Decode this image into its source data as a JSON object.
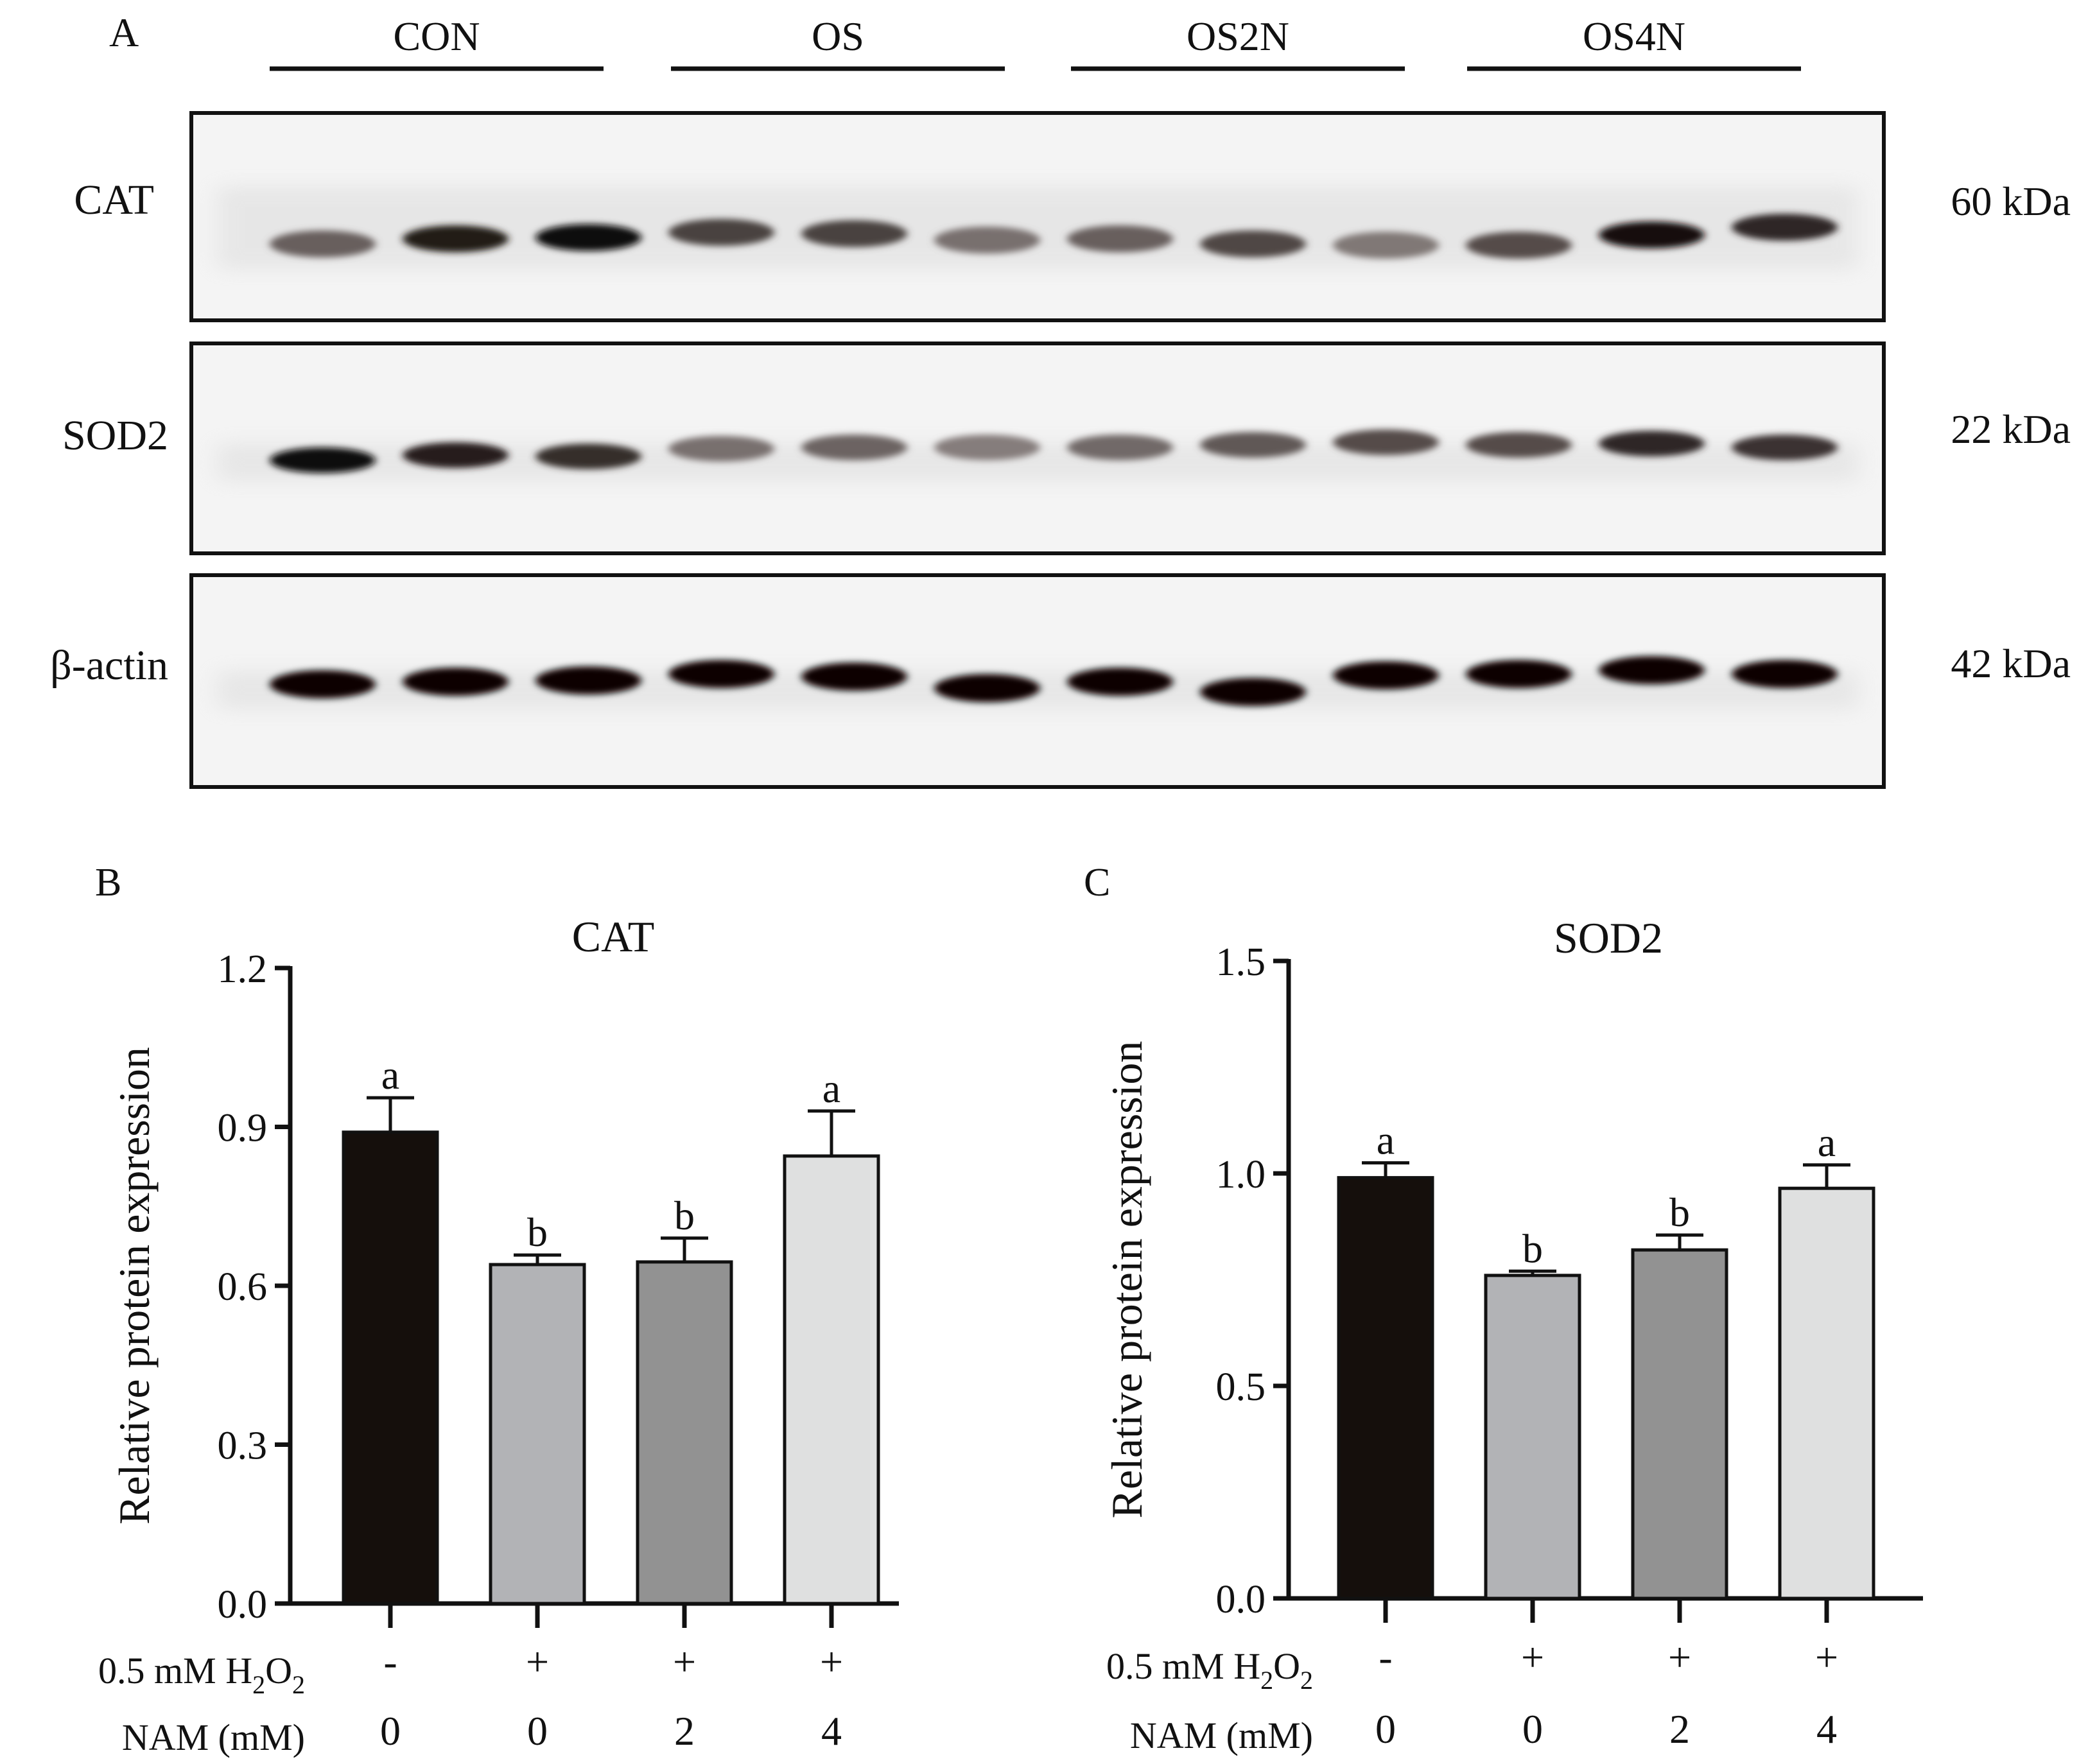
{
  "panel_a": {
    "panel_letter": "A",
    "groups": [
      "CON",
      "OS",
      "OS2N",
      "OS4N"
    ],
    "blots": [
      {
        "protein": "CAT",
        "mw": "60 kDa",
        "intensities": [
          0.62,
          0.9,
          0.97,
          0.74,
          0.74,
          0.55,
          0.62,
          0.72,
          0.52,
          0.7,
          0.95,
          0.85
        ]
      },
      {
        "protein": "SOD2",
        "mw": "22 kDa",
        "intensities": [
          0.97,
          0.88,
          0.82,
          0.55,
          0.6,
          0.5,
          0.58,
          0.65,
          0.7,
          0.7,
          0.85,
          0.8
        ]
      },
      {
        "protein": "β-actin",
        "mw": "42 kDa",
        "intensities": [
          1,
          1,
          1,
          1,
          1,
          1,
          1,
          1,
          1,
          1,
          1,
          1
        ]
      }
    ]
  },
  "chart_data": [
    {
      "type": "bar",
      "panel_letter": "B",
      "title": "CAT",
      "ylabel": "Relative protein expression",
      "ylim": [
        0,
        1.2
      ],
      "yticks": [
        "0.0",
        "0.3",
        "0.6",
        "0.9",
        "1.2"
      ],
      "ytick_values": [
        0,
        0.3,
        0.6,
        0.9,
        1.2
      ],
      "values": [
        0.89,
        0.64,
        0.645,
        0.845
      ],
      "errors": [
        0.065,
        0.018,
        0.045,
        0.085
      ],
      "letters": [
        "a",
        "b",
        "b",
        "a"
      ],
      "colors": [
        "#150f0c",
        "#b2b3b6",
        "#929292",
        "#dfe0e0"
      ],
      "row1_label": "0.5 mM H2O2",
      "row1_values": [
        "-",
        "+",
        "+",
        "+"
      ],
      "row2_label": "NAM (mM)",
      "row2_values": [
        "0",
        "0",
        "2",
        "4"
      ]
    },
    {
      "type": "bar",
      "panel_letter": "C",
      "title": "SOD2",
      "ylabel": "Relative protein expression",
      "ylim": [
        0,
        1.5
      ],
      "yticks": [
        "0.0",
        "0.5",
        "1.0",
        "1.5"
      ],
      "ytick_values": [
        0,
        0.5,
        1.0,
        1.5
      ],
      "values": [
        0.99,
        0.76,
        0.82,
        0.965
      ],
      "errors": [
        0.035,
        0.01,
        0.035,
        0.055
      ],
      "letters": [
        "a",
        "b",
        "b",
        "a"
      ],
      "colors": [
        "#150f0c",
        "#b2b3b6",
        "#929292",
        "#dfe0e0"
      ],
      "row1_label": "0.5 mM H2O2",
      "row1_values": [
        "-",
        "+",
        "+",
        "+"
      ],
      "row2_label": "NAM (mM)",
      "row2_values": [
        "0",
        "0",
        "2",
        "4"
      ]
    }
  ]
}
